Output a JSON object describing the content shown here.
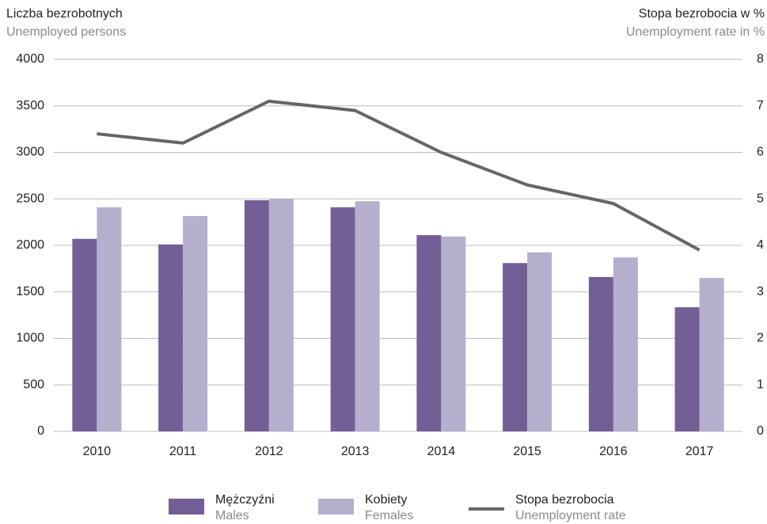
{
  "chart_data": {
    "type": "bar_line",
    "y_label": "Liczba bezrobotnych",
    "y_label_en": "Unemployed persons",
    "y2_label": "Stopa bezrobocia w %",
    "y2_label_en": "Unemployment rate in %",
    "categories": [
      "2010",
      "2011",
      "2012",
      "2013",
      "2014",
      "2015",
      "2016",
      "2017"
    ],
    "series": [
      {
        "name": "Mężczyźni",
        "name_en": "Males",
        "type": "bar",
        "color": "#735e96",
        "values": [
          2070,
          2010,
          2485,
          2410,
          2110,
          1810,
          1660,
          1335
        ]
      },
      {
        "name": "Kobiety",
        "name_en": "Females",
        "type": "bar",
        "color": "#b5aecd",
        "values": [
          2410,
          2315,
          2500,
          2475,
          2095,
          1925,
          1870,
          1650
        ]
      },
      {
        "name": "Stopa bezrobocia",
        "name_en": "Unemployment rate",
        "type": "line",
        "axis": "y2",
        "color": "#666666",
        "values": [
          6.4,
          6.2,
          7.1,
          6.9,
          6.0,
          5.3,
          4.9,
          3.9
        ]
      }
    ],
    "ylim": [
      0,
      4000
    ],
    "yticks": [
      0,
      500,
      1000,
      1500,
      2000,
      2500,
      3000,
      3500,
      4000
    ],
    "y2lim": [
      0,
      8
    ],
    "y2ticks": [
      0,
      1,
      2,
      3,
      4,
      5,
      6,
      7,
      8
    ],
    "grid": true
  }
}
